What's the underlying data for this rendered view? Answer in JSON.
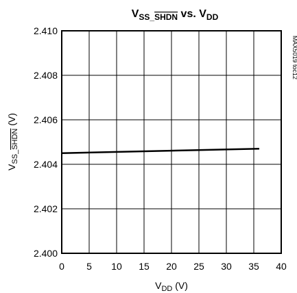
{
  "chart_data": {
    "type": "line",
    "title": {
      "main": "V",
      "main_sub": "SS_",
      "main_sub_overbar": "SHDN",
      "connector": " vs. V",
      "connector_sub": "DD"
    },
    "xlabel": {
      "main": "V",
      "sub": "DD",
      "unit": " (V)"
    },
    "ylabel": {
      "main": "V",
      "sub": "SS_",
      "sub_overbar": "SHDN",
      "unit": " (V)"
    },
    "xlim": [
      0,
      40
    ],
    "ylim": [
      2.4,
      2.41
    ],
    "x_ticks": [
      "0",
      "5",
      "10",
      "15",
      "20",
      "25",
      "30",
      "35",
      "40"
    ],
    "y_ticks": [
      "2.410",
      "2.408",
      "2.406",
      "2.404",
      "2.402",
      "2.400"
    ],
    "grid": true,
    "side_label": "MAX5019 toc12",
    "series": [
      {
        "x": [
          0,
          36
        ],
        "y": [
          2.4045,
          2.4047
        ]
      }
    ]
  }
}
